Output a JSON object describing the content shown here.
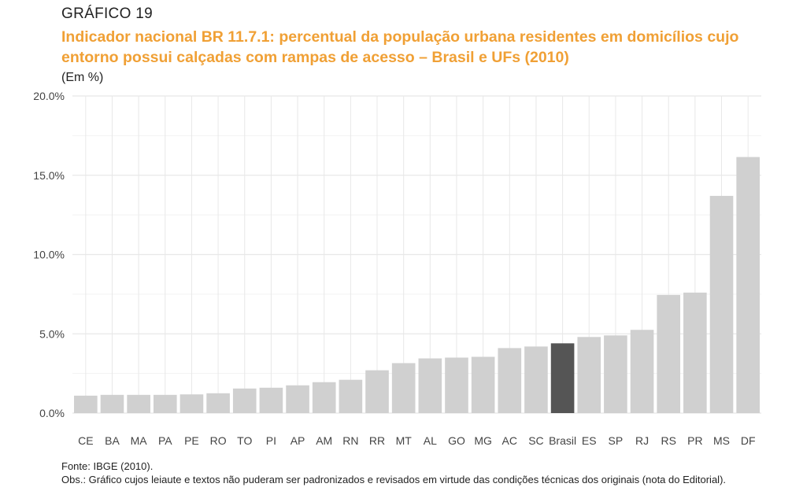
{
  "header": {
    "figure_label": "GRÁFICO 19",
    "title": "Indicador nacional BR 11.7.1: percentual da população urbana residentes em domicílios cujo entorno possui calçadas com rampas de acesso – Brasil e UFs (2010)",
    "unit": "(Em %)"
  },
  "footer": {
    "source": "Fonte: IBGE (2010).",
    "note": "Obs.: Gráfico cujos leiaute e textos não puderam ser padronizados e revisados em virtude das condições técnicas dos originais (nota do Editorial)."
  },
  "colors": {
    "bar": "#d0d0d0",
    "highlight": "#555555",
    "grid": "#e8e8e8",
    "title": "#f0a035"
  },
  "chart_data": {
    "type": "bar",
    "categories": [
      "CE",
      "BA",
      "MA",
      "PA",
      "PE",
      "RO",
      "TO",
      "PI",
      "AP",
      "AM",
      "RN",
      "RR",
      "MT",
      "AL",
      "GO",
      "MG",
      "AC",
      "SC",
      "Brasil",
      "ES",
      "SP",
      "RJ",
      "RS",
      "PR",
      "MS",
      "DF"
    ],
    "values": [
      1.1,
      1.15,
      1.15,
      1.15,
      1.18,
      1.25,
      1.55,
      1.6,
      1.75,
      1.95,
      2.1,
      2.7,
      3.15,
      3.45,
      3.5,
      3.55,
      4.1,
      4.2,
      4.4,
      4.8,
      4.9,
      5.25,
      7.45,
      7.6,
      13.7,
      16.15
    ],
    "highlight": "Brasil",
    "ylim": [
      0,
      20
    ],
    "yticks": [
      0,
      5,
      10,
      15,
      20
    ],
    "ytick_labels": [
      "0.0%",
      "5.0%",
      "10.0%",
      "15.0%",
      "20.0%"
    ],
    "grid": true,
    "legend": "none"
  }
}
